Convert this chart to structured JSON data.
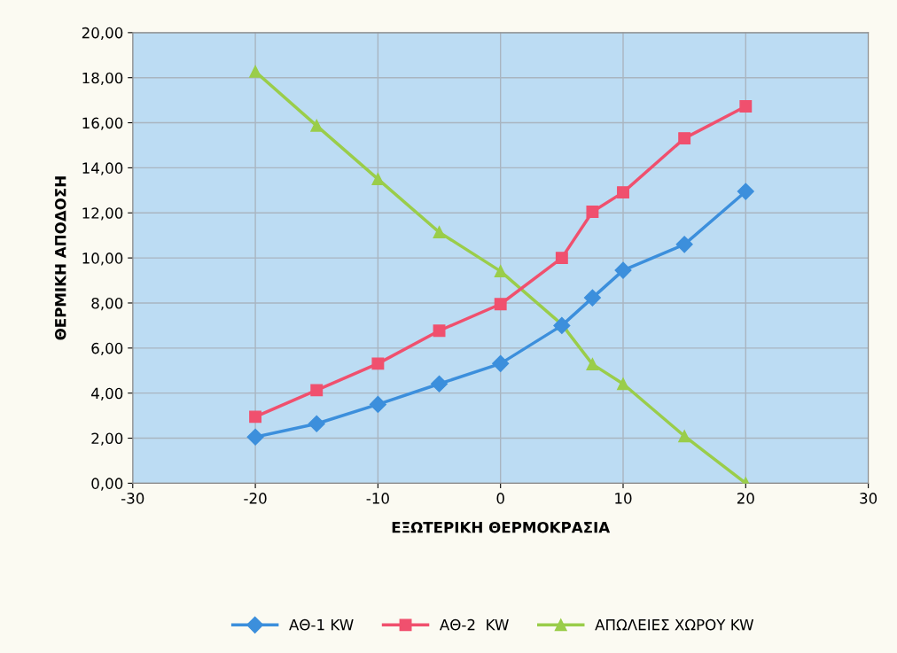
{
  "chart_data": {
    "type": "line",
    "xlabel": "ΕΞΩΤΕΡΙΚΗ ΘΕΡΜΟΚΡΑΣΙΑ",
    "ylabel": "ΘΕΡΜΙΚΗ ΑΠΟΔΟΣΗ",
    "x": [
      -20,
      -15,
      -10,
      -5,
      0,
      5,
      7.5,
      10,
      15,
      20
    ],
    "series": [
      {
        "name": "ΑΘ-1 KW",
        "color": "#3c8fdc",
        "marker": "diamond",
        "values": [
          2.05,
          2.64,
          3.5,
          4.41,
          5.31,
          7.0,
          8.23,
          9.45,
          10.6,
          12.95
        ]
      },
      {
        "name": "ΑΘ-2  KW",
        "color": "#f0506e",
        "marker": "square",
        "values": [
          2.95,
          4.13,
          5.31,
          6.77,
          7.95,
          10.0,
          12.05,
          12.91,
          15.31,
          16.73
        ]
      },
      {
        "name": "ΑΠΩΛΕΙΕΣ ΧΩΡΟΥ KW",
        "color": "#9acd4a",
        "marker": "triangle",
        "values": [
          18.27,
          15.87,
          13.5,
          11.14,
          9.41,
          7.05,
          5.28,
          4.41,
          2.09,
          0
        ]
      }
    ],
    "xlim": [
      -30,
      30
    ],
    "xticks": [
      -30,
      -20,
      -10,
      0,
      10,
      20,
      30
    ],
    "ylim": [
      0,
      20
    ],
    "yticks": [
      {
        "value": 0,
        "label": "0,00"
      },
      {
        "value": 2,
        "label": "2,00"
      },
      {
        "value": 4,
        "label": "4,00"
      },
      {
        "value": 6,
        "label": "6,00"
      },
      {
        "value": 8,
        "label": "8,00"
      },
      {
        "value": 10,
        "label": "10,00"
      },
      {
        "value": 12,
        "label": "12,00"
      },
      {
        "value": 14,
        "label": "14,00"
      },
      {
        "value": 16,
        "label": "16,00"
      },
      {
        "value": 18,
        "label": "18,00"
      },
      {
        "value": 20,
        "label": "20,00"
      }
    ],
    "grid": true,
    "legend": "bottom",
    "line_style": "solid"
  }
}
